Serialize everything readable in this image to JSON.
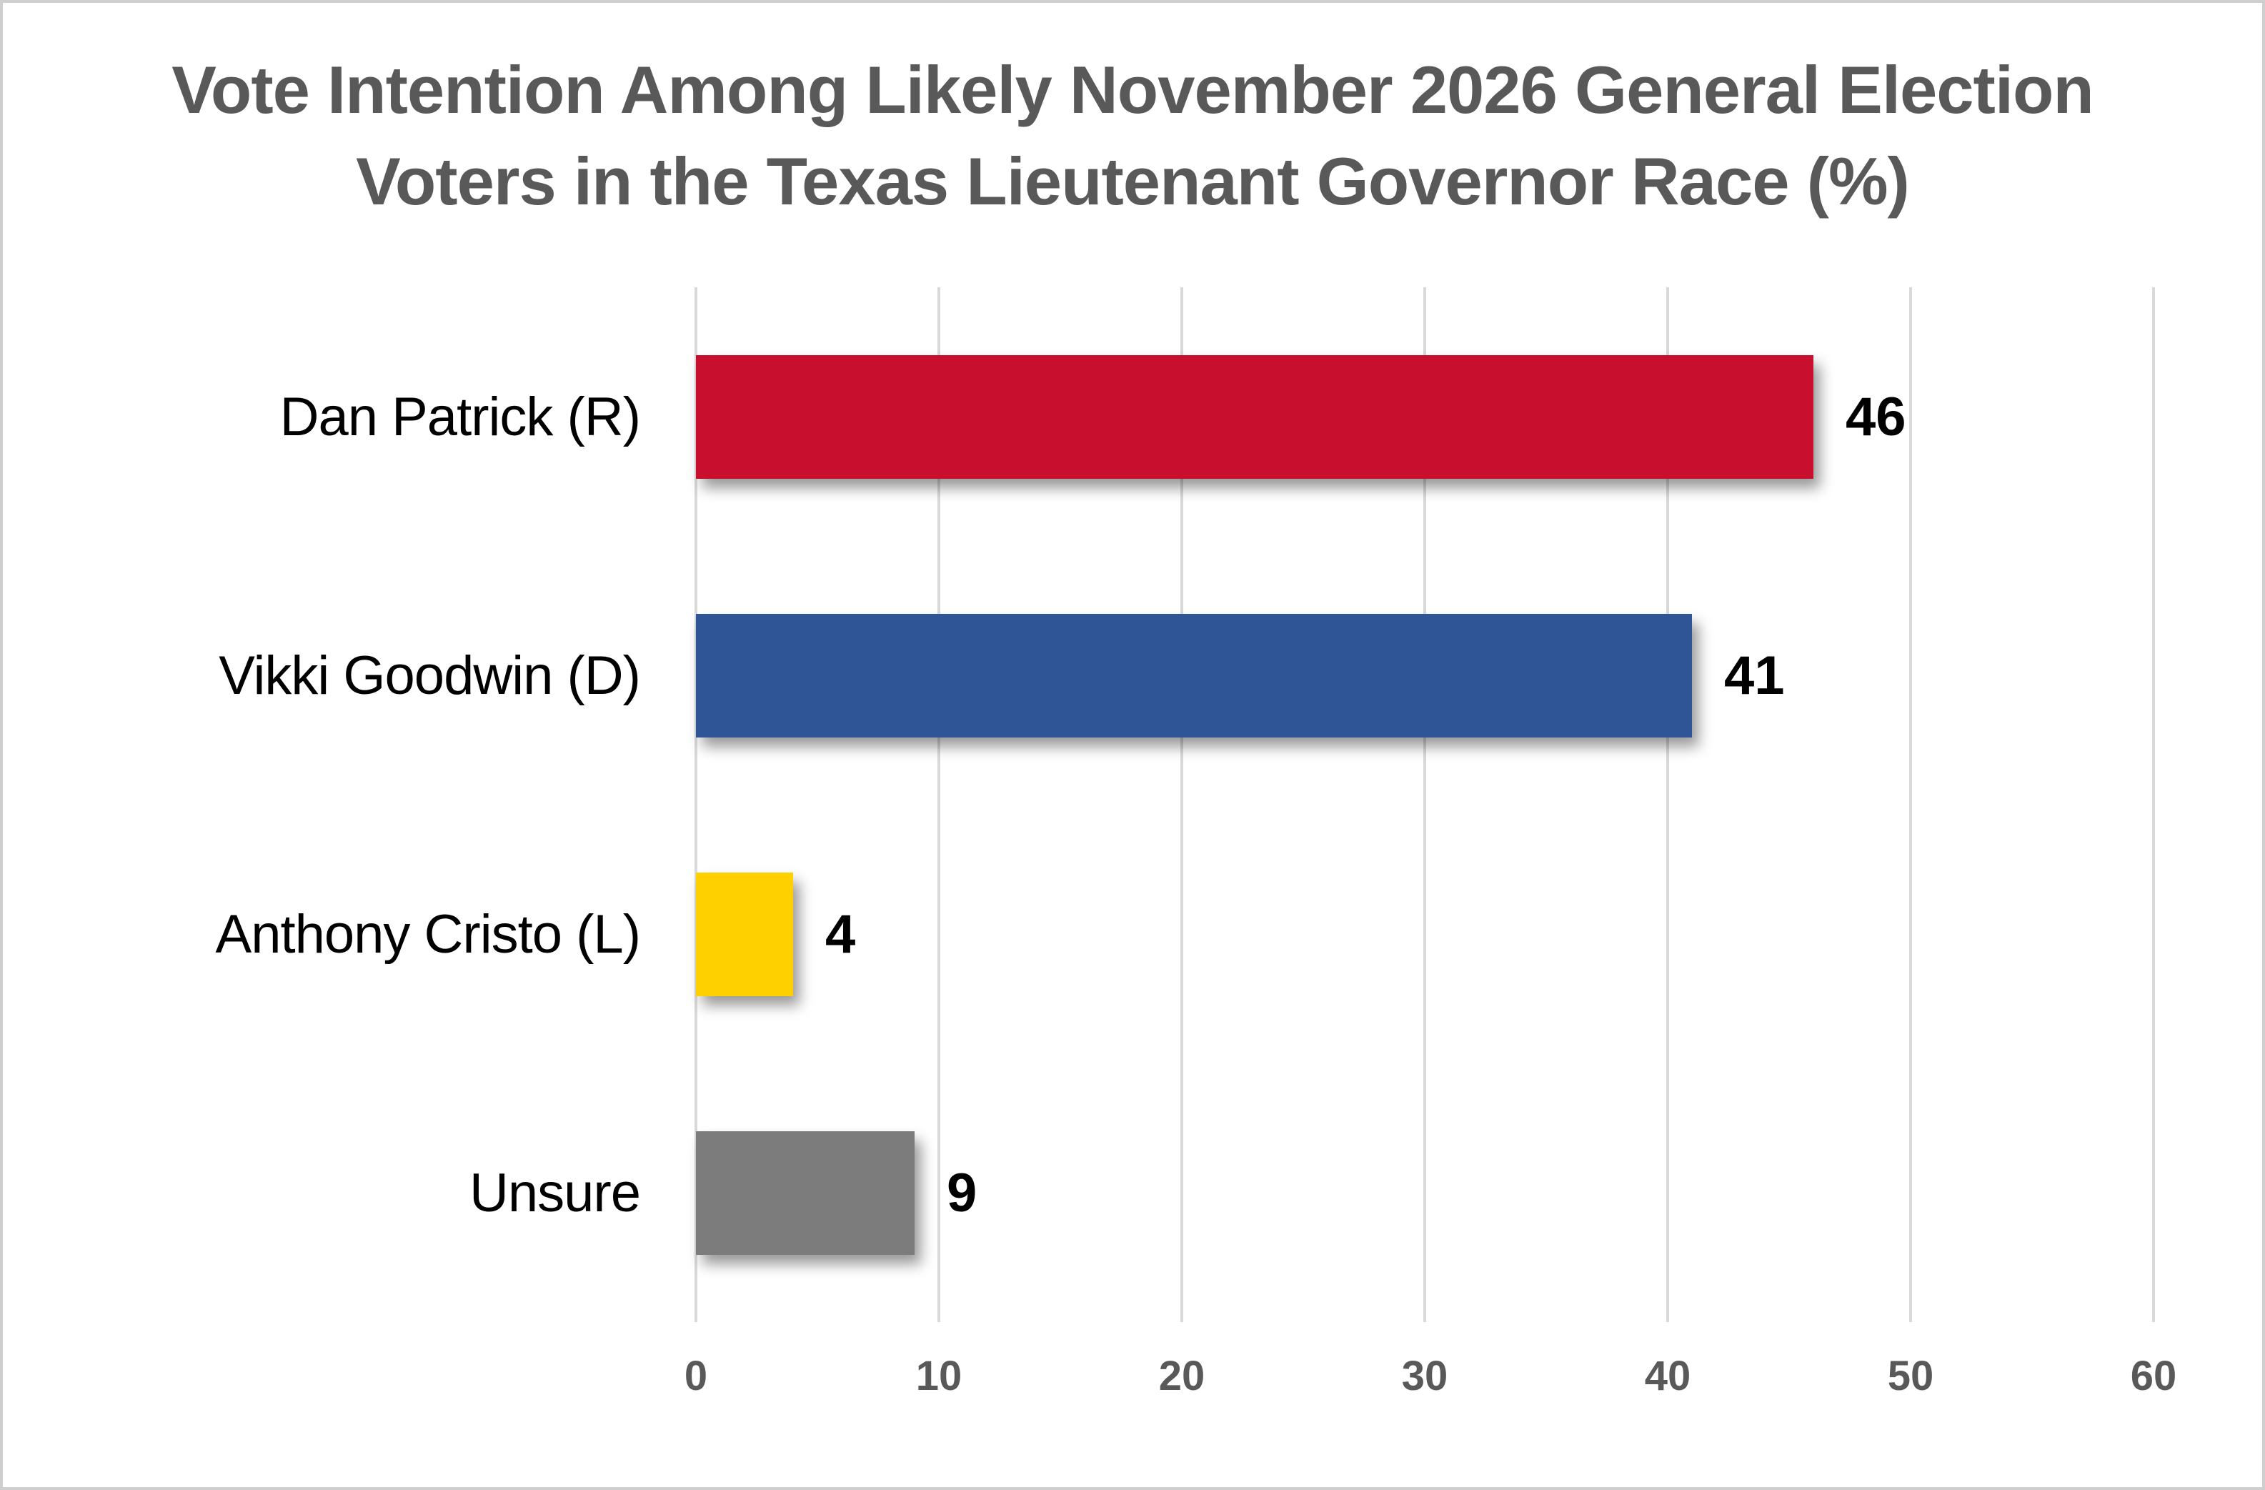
{
  "chart_data": {
    "type": "bar",
    "orientation": "horizontal",
    "title": "Vote Intention Among Likely November 2026 General Election Voters in the Texas Lieutenant Governor Race (%)",
    "title_lines": [
      "Vote Intention Among Likely November 2026 General Election",
      "Voters in the Texas Lieutenant Governor Race (%)"
    ],
    "categories": [
      "Dan Patrick (R)",
      "Vikki Goodwin (D)",
      "Anthony Cristo (L)",
      "Unsure"
    ],
    "values": [
      46,
      41,
      4,
      9
    ],
    "colors": [
      "#C8102E",
      "#2F5597",
      "#FFD000",
      "#7C7C7C"
    ],
    "value_labels_shown": true,
    "xlabel": "",
    "ylabel": "",
    "xlim": [
      0,
      60
    ],
    "xticks": [
      0,
      10,
      20,
      30,
      40,
      50,
      60
    ],
    "grid": "vertical",
    "legend": "none"
  },
  "styles": {
    "background": "#FFFFFF",
    "border_color": "#CFCFCF",
    "title_color": "#595959",
    "tick_label_color": "#595959",
    "category_label_color": "#000000",
    "value_label_color": "#000000",
    "gridline_color": "#D9D9D9"
  }
}
